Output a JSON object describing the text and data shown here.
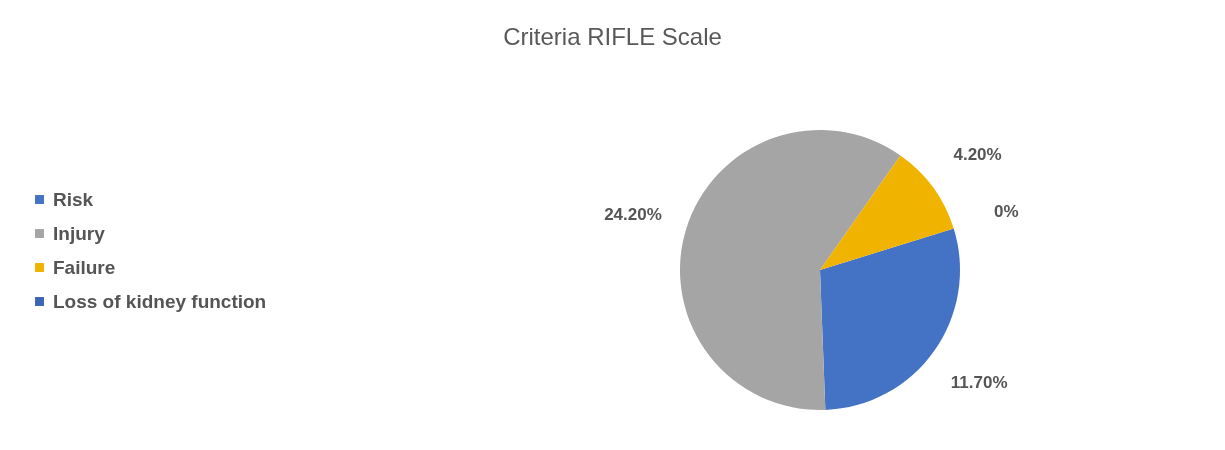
{
  "chart_data": {
    "type": "pie",
    "title": "Criteria RIFLE Scale",
    "categories": [
      "Risk",
      "Injury",
      "Failure",
      "Loss of kidney function"
    ],
    "values": [
      11.7,
      24.2,
      4.2,
      0
    ],
    "colors": [
      "#4472c4",
      "#a5a5a5",
      "#f0b400",
      "#3a66b5"
    ],
    "value_labels": [
      "11.70%",
      "24.20%",
      "4.20%",
      "0%"
    ],
    "legend": "left"
  }
}
